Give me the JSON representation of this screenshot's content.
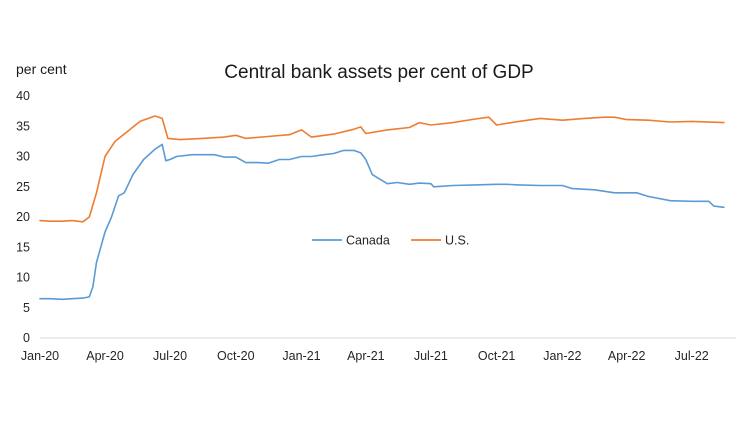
{
  "chart_data": {
    "type": "line",
    "title": "Central bank assets per cent of GDP",
    "ylabel": "per cent",
    "xlabel": "",
    "ylim": [
      0,
      40
    ],
    "yticks": [
      "0",
      "5",
      "10",
      "15",
      "20",
      "25",
      "30",
      "35",
      "40"
    ],
    "xticks": [
      "Jan-20",
      "Apr-20",
      "Jul-20",
      "Oct-20",
      "Jan-21",
      "Apr-21",
      "Jul-21",
      "Oct-21",
      "Jan-22",
      "Apr-22",
      "Jul-22"
    ],
    "grid": false,
    "legend_position": "center",
    "series": [
      {
        "name": "Canada",
        "color": "#5B9BD5",
        "points": [
          [
            "2020-01-01",
            6.5
          ],
          [
            "2020-01-15",
            6.5
          ],
          [
            "2020-02-01",
            6.4
          ],
          [
            "2020-02-15",
            6.5
          ],
          [
            "2020-03-01",
            6.6
          ],
          [
            "2020-03-10",
            6.8
          ],
          [
            "2020-03-15",
            8.5
          ],
          [
            "2020-03-20",
            12.5
          ],
          [
            "2020-04-01",
            17.5
          ],
          [
            "2020-04-10",
            20.0
          ],
          [
            "2020-04-20",
            23.5
          ],
          [
            "2020-04-28",
            24.0
          ],
          [
            "2020-05-10",
            27.0
          ],
          [
            "2020-05-25",
            29.5
          ],
          [
            "2020-06-10",
            31.2
          ],
          [
            "2020-06-20",
            32.0
          ],
          [
            "2020-06-25",
            29.3
          ],
          [
            "2020-07-01",
            29.5
          ],
          [
            "2020-07-10",
            30.0
          ],
          [
            "2020-08-01",
            30.3
          ],
          [
            "2020-09-01",
            30.3
          ],
          [
            "2020-09-15",
            29.9
          ],
          [
            "2020-10-01",
            29.9
          ],
          [
            "2020-10-15",
            29.0
          ],
          [
            "2020-11-01",
            29.0
          ],
          [
            "2020-11-15",
            28.9
          ],
          [
            "2020-12-01",
            29.5
          ],
          [
            "2020-12-15",
            29.5
          ],
          [
            "2021-01-01",
            30.0
          ],
          [
            "2021-01-15",
            30.0
          ],
          [
            "2021-02-01",
            30.3
          ],
          [
            "2021-02-15",
            30.5
          ],
          [
            "2021-03-01",
            31.0
          ],
          [
            "2021-03-15",
            31.0
          ],
          [
            "2021-03-25",
            30.6
          ],
          [
            "2021-04-01",
            29.5
          ],
          [
            "2021-04-10",
            27.0
          ],
          [
            "2021-04-20",
            26.3
          ],
          [
            "2021-05-01",
            25.5
          ],
          [
            "2021-05-15",
            25.7
          ],
          [
            "2021-06-01",
            25.4
          ],
          [
            "2021-06-15",
            25.6
          ],
          [
            "2021-07-01",
            25.5
          ],
          [
            "2021-07-05",
            25.0
          ],
          [
            "2021-08-01",
            25.2
          ],
          [
            "2021-09-01",
            25.3
          ],
          [
            "2021-10-01",
            25.4
          ],
          [
            "2021-10-15",
            25.4
          ],
          [
            "2021-11-01",
            25.3
          ],
          [
            "2021-12-01",
            25.2
          ],
          [
            "2022-01-01",
            25.2
          ],
          [
            "2022-01-15",
            24.7
          ],
          [
            "2022-02-15",
            24.5
          ],
          [
            "2022-03-15",
            24.0
          ],
          [
            "2022-04-15",
            24.0
          ],
          [
            "2022-05-01",
            23.4
          ],
          [
            "2022-06-01",
            22.7
          ],
          [
            "2022-07-01",
            22.6
          ],
          [
            "2022-07-25",
            22.6
          ],
          [
            "2022-08-01",
            21.8
          ],
          [
            "2022-08-15",
            21.6
          ]
        ]
      },
      {
        "name": "U.S.",
        "color": "#ED7D31",
        "points": [
          [
            "2020-01-01",
            19.4
          ],
          [
            "2020-01-15",
            19.3
          ],
          [
            "2020-02-01",
            19.3
          ],
          [
            "2020-02-15",
            19.4
          ],
          [
            "2020-03-01",
            19.2
          ],
          [
            "2020-03-10",
            20.0
          ],
          [
            "2020-03-20",
            24.0
          ],
          [
            "2020-04-01",
            30.0
          ],
          [
            "2020-04-15",
            32.5
          ],
          [
            "2020-05-01",
            34.0
          ],
          [
            "2020-05-20",
            35.8
          ],
          [
            "2020-06-10",
            36.7
          ],
          [
            "2020-06-20",
            36.3
          ],
          [
            "2020-06-28",
            33.0
          ],
          [
            "2020-07-15",
            32.8
          ],
          [
            "2020-08-15",
            33.0
          ],
          [
            "2020-09-15",
            33.2
          ],
          [
            "2020-10-01",
            33.5
          ],
          [
            "2020-10-15",
            33.0
          ],
          [
            "2020-11-15",
            33.3
          ],
          [
            "2020-12-15",
            33.6
          ],
          [
            "2021-01-01",
            34.4
          ],
          [
            "2021-01-15",
            33.2
          ],
          [
            "2021-02-15",
            33.7
          ],
          [
            "2021-03-15",
            34.5
          ],
          [
            "2021-03-25",
            34.9
          ],
          [
            "2021-04-01",
            33.8
          ],
          [
            "2021-05-01",
            34.4
          ],
          [
            "2021-06-01",
            34.8
          ],
          [
            "2021-06-15",
            35.6
          ],
          [
            "2021-07-01",
            35.2
          ],
          [
            "2021-08-01",
            35.6
          ],
          [
            "2021-09-01",
            36.2
          ],
          [
            "2021-09-20",
            36.5
          ],
          [
            "2021-10-01",
            35.2
          ],
          [
            "2021-11-01",
            35.8
          ],
          [
            "2021-12-01",
            36.3
          ],
          [
            "2022-01-01",
            36.0
          ],
          [
            "2022-02-01",
            36.3
          ],
          [
            "2022-03-01",
            36.5
          ],
          [
            "2022-03-15",
            36.5
          ],
          [
            "2022-04-01",
            36.1
          ],
          [
            "2022-05-01",
            36.0
          ],
          [
            "2022-06-01",
            35.7
          ],
          [
            "2022-07-01",
            35.8
          ],
          [
            "2022-08-15",
            35.6
          ]
        ]
      }
    ]
  }
}
